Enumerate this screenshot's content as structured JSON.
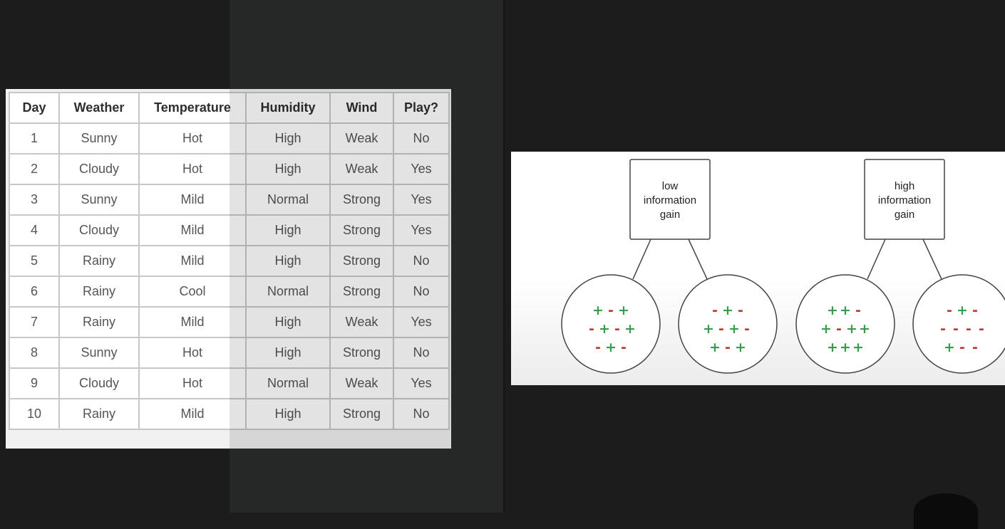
{
  "table": {
    "headers": [
      "Day",
      "Weather",
      "Temperature",
      "Humidity",
      "Wind",
      "Play?"
    ],
    "rows": [
      [
        "1",
        "Sunny",
        "Hot",
        "High",
        "Weak",
        "No"
      ],
      [
        "2",
        "Cloudy",
        "Hot",
        "High",
        "Weak",
        "Yes"
      ],
      [
        "3",
        "Sunny",
        "Mild",
        "Normal",
        "Strong",
        "Yes"
      ],
      [
        "4",
        "Cloudy",
        "Mild",
        "High",
        "Strong",
        "Yes"
      ],
      [
        "5",
        "Rainy",
        "Mild",
        "High",
        "Strong",
        "No"
      ],
      [
        "6",
        "Rainy",
        "Cool",
        "Normal",
        "Strong",
        "No"
      ],
      [
        "7",
        "Rainy",
        "Mild",
        "High",
        "Weak",
        "Yes"
      ],
      [
        "8",
        "Sunny",
        "Hot",
        "High",
        "Strong",
        "No"
      ],
      [
        "9",
        "Cloudy",
        "Hot",
        "Normal",
        "Weak",
        "Yes"
      ],
      [
        "10",
        "Rainy",
        "Mild",
        "High",
        "Strong",
        "No"
      ]
    ]
  },
  "diagram": {
    "colors": {
      "plus": "#3a9a4e",
      "minus": "#c0392b"
    },
    "trees": [
      {
        "label": [
          "low",
          "information",
          "gain"
        ],
        "children": [
          [
            [
              "+",
              "-",
              "+"
            ],
            [
              "-",
              "+",
              "-",
              "+"
            ],
            [
              "-",
              "+",
              "-"
            ]
          ],
          [
            [
              "-",
              "+",
              "-"
            ],
            [
              "+",
              "-",
              "+",
              "-"
            ],
            [
              "+",
              "-",
              "+"
            ]
          ]
        ]
      },
      {
        "label": [
          "high",
          "information",
          "gain"
        ],
        "children": [
          [
            [
              "+",
              "+",
              "-"
            ],
            [
              "+",
              "-",
              "+",
              "+"
            ],
            [
              "+",
              "+",
              "+"
            ]
          ],
          [
            [
              "-",
              "+",
              "-"
            ],
            [
              "-",
              "-",
              "-",
              "-"
            ],
            [
              "+",
              "-",
              "-"
            ]
          ]
        ]
      }
    ]
  }
}
